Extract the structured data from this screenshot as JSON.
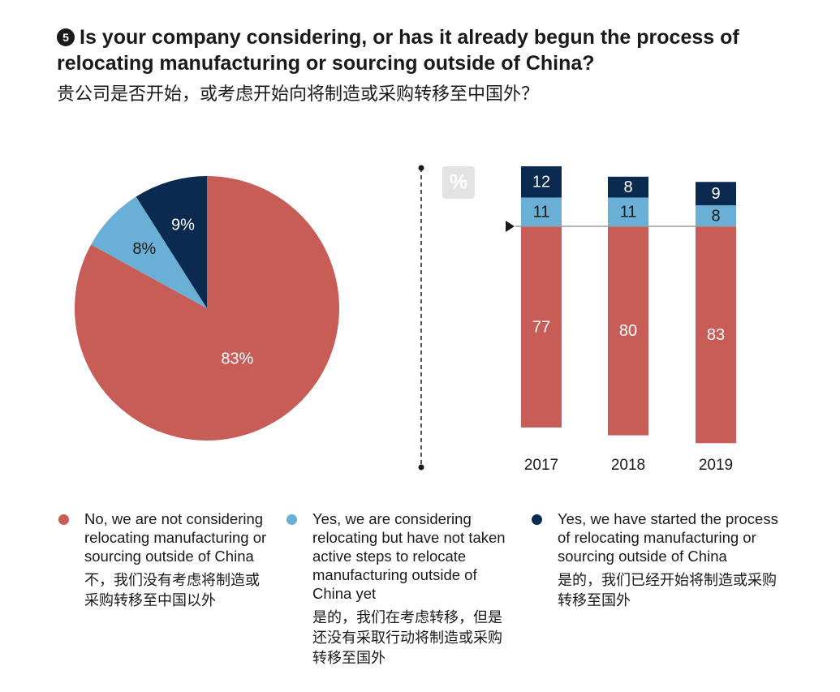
{
  "header": {
    "number": "5",
    "title_en": "Is your company considering, or has it already begun the process of relocating manufacturing or sourcing outside of China?",
    "title_zh": "贵公司是否开始，或考虑开始向将制造或采购转移至中国外？"
  },
  "colors": {
    "no": "#c85d58",
    "considering": "#6aafd6",
    "started": "#0b2a4f",
    "axis": "#1a1a1a",
    "unit_box": "#e3e3e3"
  },
  "legend": [
    {
      "key": "no",
      "text_en": "No, we are not considering relocating manufacturing or sourcing outside of China",
      "text_zh": "不，我们没有考虑将制造或采购转移至中国以外"
    },
    {
      "key": "considering",
      "text_en": "Yes, we are considering relocating but have not taken active steps to relocate manufacturing outside of China yet",
      "text_zh": "是的，我们在考虑转移，但是还没有采取行动将制造或采购转移至国外"
    },
    {
      "key": "started",
      "text_en": "Yes, we have started the process of relocating manufacturing or sourcing outside of China",
      "text_zh": "是的，我们已经开始将制造或采购转移至国外"
    }
  ],
  "chart_data": [
    {
      "type": "pie",
      "slices": [
        {
          "key": "no",
          "value": 83,
          "label": "83%"
        },
        {
          "key": "considering",
          "value": 8,
          "label": "8%"
        },
        {
          "key": "started",
          "value": 9,
          "label": "9%"
        }
      ]
    },
    {
      "type": "bar",
      "stacked": true,
      "unit_label": "%",
      "categories": [
        "2017",
        "2018",
        "2019"
      ],
      "series": [
        {
          "key": "no",
          "values": [
            77,
            80,
            83
          ]
        },
        {
          "key": "considering",
          "values": [
            11,
            11,
            8
          ]
        },
        {
          "key": "started",
          "values": [
            12,
            8,
            9
          ]
        }
      ],
      "ylim": [
        0,
        100
      ]
    }
  ]
}
